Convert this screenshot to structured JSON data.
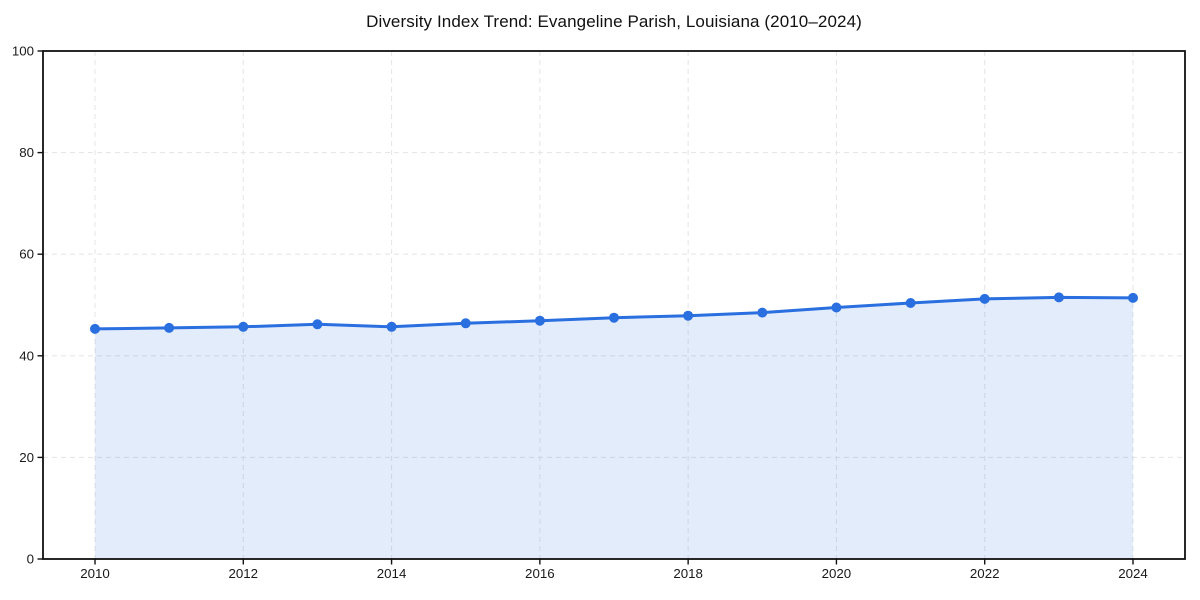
{
  "chart_data": {
    "type": "area",
    "title": "Diversity Index Trend: Evangeline Parish, Louisiana (2010–2024)",
    "xlabel": "",
    "ylabel": "",
    "x": [
      2010,
      2011,
      2012,
      2013,
      2014,
      2015,
      2016,
      2017,
      2018,
      2019,
      2020,
      2021,
      2022,
      2023,
      2024
    ],
    "series": [
      {
        "name": "Diversity Index",
        "values": [
          45.3,
          45.5,
          45.7,
          46.2,
          45.7,
          46.4,
          46.9,
          47.5,
          47.9,
          48.5,
          49.5,
          50.4,
          51.2,
          51.5,
          51.4
        ]
      }
    ],
    "ylim": [
      0,
      100
    ],
    "yticks": [
      0,
      20,
      40,
      60,
      80,
      100
    ],
    "xticks": [
      2010,
      2012,
      2014,
      2016,
      2018,
      2020,
      2022,
      2024
    ],
    "grid": true,
    "grid_style": "dashed",
    "legend": false,
    "marker": "circle",
    "colors": {
      "line": "#2a6fdf",
      "fill": "rgba(42,111,223,0.13)",
      "grid": "#e7e7e7",
      "axis": "#111111",
      "tick_label": "#1a1a1a",
      "background": "#ffffff"
    }
  }
}
